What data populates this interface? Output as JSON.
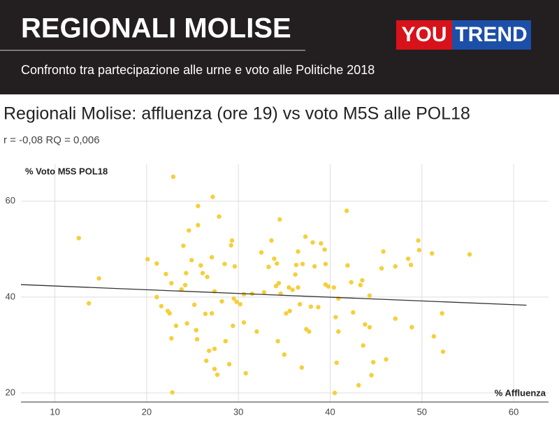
{
  "header": {
    "title": "REGIONALI MOLISE",
    "subtitle": "Confronto tra partecipazione alle urne e voto alle Politiche 2018",
    "logo": {
      "left": "YOU",
      "right": "TREND"
    }
  },
  "chart_data": {
    "type": "scatter",
    "title": "Regionali Molise: affluenza (ore 19) vs voto M5S alle POL18",
    "subtitle": "r = -0,08 RQ = 0,006",
    "y_label": "% Voto M5S POL18",
    "x_label": "% Affluenza",
    "xlim": [
      6.3,
      63.8
    ],
    "ylim": [
      18.1,
      67.7
    ],
    "xticks": [
      10,
      20,
      30,
      40,
      50,
      60
    ],
    "yticks": [
      20,
      40,
      60
    ],
    "grid": true,
    "trendline": {
      "color": "#333333",
      "x": [
        6.3,
        61.4
      ],
      "y": [
        42.6,
        38.3
      ]
    },
    "series": [
      {
        "color": "#f5cf3b",
        "x": [
          12.6,
          13.7,
          14.8,
          20.1,
          21.1,
          21.1,
          21.6,
          22.1,
          22.3,
          22.5,
          22.7,
          22.9,
          22.8,
          22.7,
          23.2,
          23.8,
          24.0,
          24.2,
          24.3,
          24.4,
          24.6,
          24.9,
          25.2,
          25.4,
          25.5,
          25.6,
          25.6,
          25.9,
          26.1,
          26.4,
          26.6,
          26.5,
          26.8,
          27.1,
          27.1,
          27.2,
          27.4,
          27.4,
          27.4,
          27.7,
          27.9,
          28.2,
          28.5,
          28.6,
          29.0,
          29.2,
          29.3,
          29.4,
          29.5,
          29.6,
          29.8,
          30.2,
          30.6,
          30.6,
          30.8,
          31.5,
          32.0,
          32.5,
          32.8,
          33.3,
          33.6,
          33.9,
          34.1,
          34.2,
          34.3,
          34.5,
          34.4,
          34.6,
          35.0,
          35.2,
          35.5,
          35.6,
          35.9,
          36.2,
          36.3,
          36.5,
          36.5,
          36.7,
          36.9,
          37.0,
          37.3,
          37.4,
          37.7,
          37.9,
          38.1,
          38.3,
          38.7,
          39.0,
          39.4,
          39.5,
          39.5,
          39.8,
          40.4,
          40.5,
          40.6,
          40.7,
          40.9,
          40.9,
          41.8,
          41.9,
          42.3,
          42.5,
          43.1,
          43.3,
          43.5,
          43.6,
          43.8,
          44.3,
          44.3,
          44.5,
          44.7,
          45.6,
          45.8,
          46.1,
          47.1,
          47.1,
          48.5,
          48.8,
          48.9,
          49.6,
          49.7,
          51.1,
          51.3,
          52.2,
          52.3,
          55.2
        ],
        "values": [
          52.3,
          38.7,
          43.9,
          47.9,
          47.0,
          40.0,
          38.1,
          44.8,
          37.1,
          36.6,
          31.4,
          65.1,
          20.1,
          42.9,
          34.0,
          41.6,
          50.7,
          42.5,
          45.0,
          34.5,
          53.9,
          47.7,
          38.4,
          33.1,
          31.2,
          59.0,
          55.0,
          46.6,
          45.0,
          36.5,
          44.2,
          26.7,
          28.8,
          48.3,
          36.6,
          60.9,
          41.2,
          29.2,
          25.0,
          23.8,
          56.8,
          39.1,
          46.9,
          30.8,
          26.0,
          50.8,
          51.8,
          34.0,
          39.7,
          46.4,
          39.0,
          38.5,
          40.6,
          34.7,
          24.1,
          40.7,
          32.8,
          49.3,
          41.0,
          46.3,
          51.8,
          48.0,
          42.3,
          47.0,
          30.8,
          56.2,
          42.9,
          40.7,
          28.0,
          36.6,
          42.0,
          37.1,
          41.5,
          44.7,
          46.7,
          49.5,
          42.0,
          38.5,
          25.3,
          46.9,
          52.6,
          33.3,
          32.8,
          38.0,
          51.4,
          46.4,
          37.9,
          51.2,
          49.9,
          46.9,
          42.6,
          42.2,
          42.0,
          20.0,
          35.8,
          26.3,
          32.8,
          39.7,
          58.0,
          46.6,
          43.1,
          36.8,
          21.6,
          42.5,
          43.5,
          29.9,
          34.3,
          33.7,
          40.3,
          23.7,
          26.4,
          46.0,
          49.5,
          27.0,
          46.4,
          35.5,
          48.0,
          46.7,
          33.7,
          51.8,
          49.8,
          49.1,
          31.8,
          36.6,
          28.6,
          48.9
        ]
      }
    ]
  }
}
